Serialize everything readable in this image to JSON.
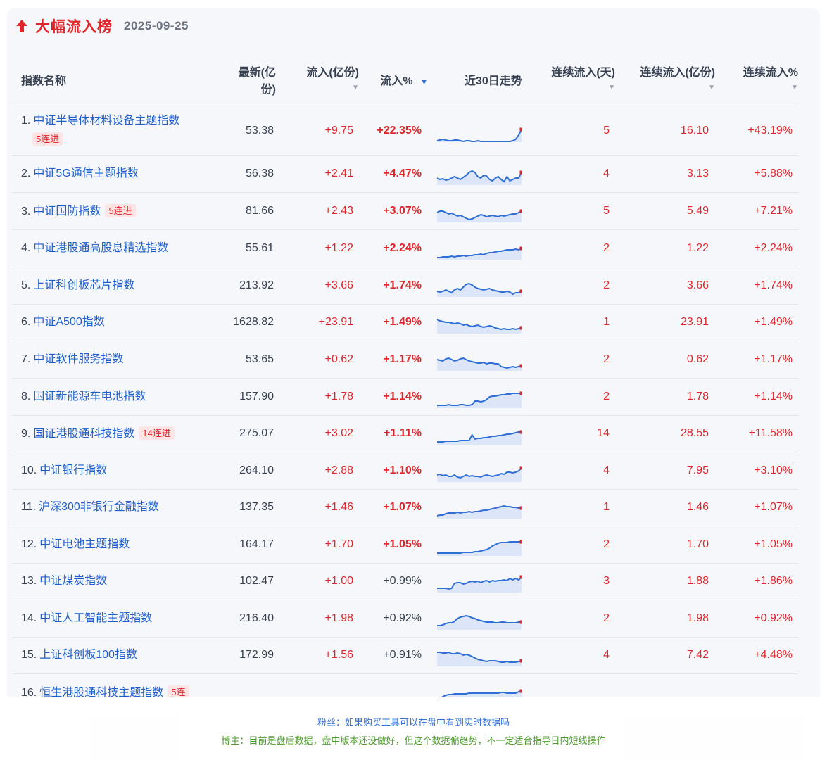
{
  "header": {
    "title": "大幅流入榜",
    "date": "2025-09-25"
  },
  "columns": {
    "name": "指数名称",
    "latest_l1": "最新(亿",
    "latest_l2": "份)",
    "inflow": "流入(亿份)",
    "inflow_pct": "流入%",
    "trend": "近30日走势",
    "days": "连续流入(天)",
    "cum_amount": "连续流入(亿份)",
    "cum_pct": "连续流入%"
  },
  "colors": {
    "up": "#e0262b",
    "link": "#1f5fcc",
    "spark": "#2f6fd6"
  },
  "rows": [
    {
      "idx": "1.",
      "name": "中证半导体材料设备主题指数",
      "badge": "5连进",
      "latest": "53.38",
      "inflow": "+9.75",
      "pct": "+22.35%",
      "days": "5",
      "camt": "16.10",
      "cpct": "+43.19%",
      "trend": [
        30,
        29,
        28,
        29,
        30,
        30,
        29,
        29,
        30,
        31,
        30,
        30,
        31,
        31,
        30,
        31,
        31,
        32,
        31,
        31,
        31,
        32,
        31,
        31,
        31,
        31,
        30,
        28,
        22,
        14
      ]
    },
    {
      "idx": "2.",
      "name": "中证5G通信主题指数",
      "badge": "",
      "latest": "56.38",
      "inflow": "+2.41",
      "pct": "+4.47%",
      "days": "4",
      "camt": "3.13",
      "cpct": "+5.88%",
      "trend": [
        22,
        24,
        23,
        25,
        24,
        22,
        20,
        22,
        24,
        21,
        18,
        14,
        12,
        14,
        20,
        22,
        18,
        19,
        24,
        26,
        22,
        20,
        24,
        27,
        20,
        26,
        24,
        22,
        22,
        14
      ]
    },
    {
      "idx": "3.",
      "name": "中证国防指数",
      "badge": "5连进",
      "latest": "81.66",
      "inflow": "+2.43",
      "pct": "+3.07%",
      "days": "5",
      "camt": "5.49",
      "cpct": "+7.21%",
      "trend": [
        18,
        16,
        16,
        18,
        20,
        19,
        21,
        23,
        22,
        24,
        26,
        28,
        27,
        25,
        23,
        21,
        22,
        24,
        23,
        22,
        23,
        24,
        22,
        23,
        22,
        21,
        20,
        20,
        18,
        16
      ]
    },
    {
      "idx": "4.",
      "name": "中证港股通高股息精选指数",
      "badge": "",
      "latest": "55.61",
      "inflow": "+1.22",
      "pct": "+2.24%",
      "days": "2",
      "camt": "1.22",
      "cpct": "+2.24%",
      "trend": [
        29,
        29,
        28,
        28,
        28,
        27,
        28,
        27,
        27,
        26,
        27,
        26,
        26,
        25,
        25,
        24,
        25,
        23,
        22,
        22,
        21,
        20,
        20,
        19,
        18,
        18,
        18,
        17,
        18,
        16
      ]
    },
    {
      "idx": "5.",
      "name": "上证科创板芯片指数",
      "badge": "",
      "latest": "213.92",
      "inflow": "+3.66",
      "pct": "+1.74%",
      "days": "2",
      "camt": "3.66",
      "cpct": "+1.74%",
      "trend": [
        24,
        25,
        24,
        22,
        24,
        26,
        22,
        20,
        22,
        18,
        14,
        13,
        15,
        18,
        20,
        21,
        22,
        21,
        20,
        22,
        23,
        24,
        25,
        25,
        24,
        25,
        28,
        26,
        26,
        24
      ]
    },
    {
      "idx": "6.",
      "name": "中证A500指数",
      "badge": "",
      "latest": "1628.82",
      "inflow": "+23.91",
      "pct": "+1.49%",
      "days": "1",
      "camt": "23.91",
      "cpct": "+1.49%",
      "trend": [
        12,
        14,
        15,
        16,
        16,
        17,
        18,
        17,
        18,
        20,
        19,
        21,
        22,
        21,
        20,
        22,
        23,
        22,
        21,
        22,
        24,
        25,
        26,
        25,
        26,
        26,
        25,
        26,
        25,
        24
      ]
    },
    {
      "idx": "7.",
      "name": "中证软件服务指数",
      "badge": "",
      "latest": "53.65",
      "inflow": "+0.62",
      "pct": "+1.17%",
      "days": "2",
      "camt": "0.62",
      "cpct": "+1.17%",
      "trend": [
        16,
        17,
        18,
        15,
        14,
        16,
        18,
        17,
        15,
        14,
        16,
        18,
        19,
        20,
        21,
        21,
        20,
        22,
        21,
        21,
        22,
        22,
        26,
        27,
        28,
        27,
        26,
        27,
        26,
        25
      ]
    },
    {
      "idx": "8.",
      "name": "国证新能源车电池指数",
      "badge": "",
      "latest": "157.90",
      "inflow": "+1.78",
      "pct": "+1.14%",
      "days": "2",
      "camt": "1.78",
      "cpct": "+1.14%",
      "trend": [
        28,
        28,
        28,
        28,
        27,
        28,
        28,
        28,
        27,
        27,
        28,
        28,
        27,
        22,
        22,
        23,
        22,
        20,
        16,
        15,
        15,
        14,
        13,
        13,
        12,
        12,
        11,
        11,
        11,
        11
      ]
    },
    {
      "idx": "9.",
      "name": "国证港股通科技指数",
      "badge": "14连进",
      "latest": "275.07",
      "inflow": "+3.02",
      "pct": "+1.11%",
      "days": "14",
      "camt": "28.55",
      "cpct": "+11.58%",
      "trend": [
        28,
        28,
        28,
        27,
        27,
        27,
        27,
        27,
        26,
        26,
        26,
        26,
        18,
        24,
        23,
        23,
        22,
        22,
        21,
        20,
        20,
        19,
        19,
        18,
        17,
        17,
        16,
        15,
        14,
        14
      ]
    },
    {
      "idx": "10.",
      "name": "中证银行指数",
      "badge": "",
      "latest": "264.10",
      "inflow": "+2.88",
      "pct": "+1.10%",
      "days": "4",
      "camt": "7.95",
      "cpct": "+3.10%",
      "trend": [
        22,
        21,
        23,
        22,
        24,
        24,
        22,
        25,
        26,
        24,
        22,
        24,
        23,
        24,
        24,
        25,
        23,
        22,
        23,
        24,
        23,
        22,
        20,
        21,
        18,
        18,
        19,
        18,
        16,
        12
      ]
    },
    {
      "idx": "11.",
      "name": "沪深300非银行金融指数",
      "badge": "",
      "latest": "137.35",
      "inflow": "+1.46",
      "pct": "+1.07%",
      "days": "1",
      "camt": "1.46",
      "cpct": "+1.07%",
      "trend": [
        28,
        27,
        27,
        25,
        24,
        24,
        24,
        23,
        24,
        23,
        23,
        22,
        23,
        22,
        22,
        21,
        20,
        20,
        19,
        18,
        17,
        16,
        15,
        14,
        15,
        15,
        16,
        16,
        17,
        17
      ]
    },
    {
      "idx": "12.",
      "name": "中证电池主题指数",
      "badge": "",
      "latest": "164.17",
      "inflow": "+1.70",
      "pct": "+1.05%",
      "days": "2",
      "camt": "1.70",
      "cpct": "+1.05%",
      "trend": [
        28,
        28,
        28,
        28,
        28,
        28,
        28,
        28,
        28,
        27,
        27,
        27,
        27,
        26,
        26,
        25,
        24,
        23,
        21,
        18,
        16,
        14,
        13,
        13,
        13,
        12,
        12,
        12,
        12,
        12
      ]
    },
    {
      "idx": "13.",
      "name": "中证煤炭指数",
      "badge": "",
      "latest": "102.47",
      "inflow": "+1.00",
      "pct": "+0.99%",
      "pct_plain": true,
      "days": "3",
      "camt": "1.88",
      "cpct": "+1.86%",
      "trend": [
        26,
        26,
        26,
        26,
        27,
        26,
        19,
        18,
        18,
        20,
        19,
        17,
        16,
        17,
        16,
        18,
        16,
        15,
        17,
        15,
        16,
        15,
        15,
        14,
        15,
        12,
        14,
        12,
        14,
        10
      ]
    },
    {
      "idx": "14.",
      "name": "中证人工智能主题指数",
      "badge": "",
      "latest": "216.40",
      "inflow": "+1.98",
      "pct": "+0.92%",
      "pct_plain": true,
      "days": "2",
      "camt": "1.98",
      "cpct": "+0.92%",
      "trend": [
        26,
        26,
        25,
        23,
        22,
        22,
        20,
        16,
        14,
        13,
        12,
        13,
        15,
        16,
        18,
        19,
        20,
        21,
        21,
        21,
        22,
        22,
        21,
        21,
        22,
        22,
        22,
        22,
        21,
        21
      ]
    },
    {
      "idx": "15.",
      "name": "上证科创板100指数",
      "badge": "",
      "latest": "172.99",
      "inflow": "+1.56",
      "pct": "+0.91%",
      "pct_plain": true,
      "days": "4",
      "camt": "7.42",
      "cpct": "+4.48%",
      "trend": [
        12,
        12,
        13,
        13,
        12,
        14,
        14,
        13,
        14,
        16,
        15,
        16,
        18,
        20,
        22,
        23,
        24,
        25,
        24,
        24,
        24,
        25,
        26,
        26,
        25,
        26,
        26,
        26,
        25,
        24
      ]
    },
    {
      "idx": "16.",
      "name": "恒生港股通科技主题指数",
      "badge": "5连",
      "latest": "",
      "inflow": "",
      "pct": "",
      "days": "",
      "camt": "",
      "cpct": "",
      "trend": [
        28,
        24,
        22,
        20,
        19,
        19,
        18,
        18,
        18,
        18,
        18,
        17,
        17,
        17,
        17,
        17,
        17,
        17,
        17,
        17,
        17,
        17,
        16,
        16,
        17,
        17,
        17,
        17,
        15,
        14
      ]
    }
  ],
  "overlay": {
    "question": "粉丝：如果购买工具可以在盘中看到实时数据吗",
    "answer": "博主：目前是盘后数据，盘中版本还没做好，但这个数据偏趋势，不一定适合指导日内短线操作"
  }
}
